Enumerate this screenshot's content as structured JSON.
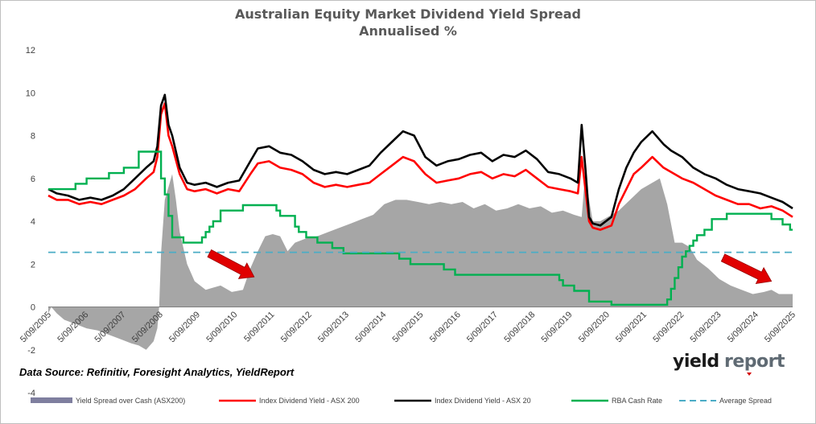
{
  "chart_data": {
    "type": "line",
    "title": "Australian Equity Market Dividend Yield Spread",
    "subtitle": "Annualised %",
    "source_note": "Data Source: Refinitiv, Foresight Analytics, YieldReport",
    "logo": {
      "part1": "yield",
      "part2": "report"
    },
    "ylim": [
      -4,
      12
    ],
    "yticks": [
      -4,
      -2,
      0,
      2,
      4,
      6,
      8,
      10,
      12
    ],
    "xlim": [
      2005.67,
      2025.67
    ],
    "xtick_labels": [
      "5/09/2005",
      "5/09/2006",
      "5/09/2007",
      "5/09/2008",
      "5/09/2009",
      "5/09/2010",
      "5/09/2011",
      "5/09/2012",
      "5/09/2013",
      "5/09/2014",
      "5/09/2015",
      "5/09/2016",
      "5/09/2017",
      "5/09/2018",
      "5/09/2019",
      "5/09/2020",
      "5/09/2021",
      "5/09/2022",
      "5/09/2023",
      "5/09/2024",
      "5/09/2025"
    ],
    "xtick_values": [
      2005.67,
      2006.67,
      2007.67,
      2008.67,
      2009.67,
      2010.67,
      2011.67,
      2012.67,
      2013.67,
      2014.67,
      2015.67,
      2016.67,
      2017.67,
      2018.67,
      2019.67,
      2020.67,
      2021.67,
      2022.67,
      2023.67,
      2024.67,
      2025.67
    ],
    "grid": false,
    "legend_position": "bottom",
    "average_spread": 2.55,
    "series": [
      {
        "name": "Yield Spread over Cash (ASX200)",
        "style": "area",
        "color": "#a6a6a6",
        "x": [
          2005.67,
          2005.75,
          2005.9,
          2006.1,
          2006.4,
          2006.7,
          2007.0,
          2007.3,
          2007.6,
          2007.9,
          2008.1,
          2008.3,
          2008.5,
          2008.6,
          2008.65,
          2008.7,
          2008.8,
          2009.0,
          2009.1,
          2009.2,
          2009.4,
          2009.6,
          2009.9,
          2010.1,
          2010.3,
          2010.6,
          2010.9,
          2011.1,
          2011.3,
          2011.5,
          2011.7,
          2011.9,
          2012.1,
          2012.3,
          2012.6,
          2012.9,
          2013.2,
          2013.5,
          2013.8,
          2014.1,
          2014.4,
          2014.7,
          2015.0,
          2015.3,
          2015.6,
          2015.9,
          2016.2,
          2016.5,
          2016.8,
          2017.1,
          2017.4,
          2017.7,
          2018.0,
          2018.3,
          2018.6,
          2018.9,
          2019.2,
          2019.5,
          2019.8,
          2020.0,
          2020.1,
          2020.2,
          2020.3,
          2020.5,
          2020.7,
          2021.0,
          2021.3,
          2021.6,
          2021.9,
          2022.1,
          2022.3,
          2022.5,
          2022.7,
          2022.9,
          2023.1,
          2023.4,
          2023.7,
          2024.0,
          2024.3,
          2024.6,
          2024.9,
          2025.1,
          2025.3,
          2025.5,
          2025.67
        ],
        "y": [
          -0.3,
          0.0,
          -0.3,
          -0.6,
          -0.8,
          -1.0,
          -1.1,
          -1.3,
          -1.5,
          -1.7,
          -1.8,
          -2.0,
          -1.6,
          -1.0,
          0.0,
          2.5,
          5.0,
          6.2,
          5.0,
          3.5,
          2.0,
          1.2,
          0.8,
          0.9,
          1.0,
          0.7,
          0.8,
          1.8,
          2.6,
          3.3,
          3.4,
          3.3,
          2.6,
          3.0,
          3.2,
          3.3,
          3.5,
          3.7,
          3.9,
          4.1,
          4.3,
          4.8,
          5.0,
          5.0,
          4.9,
          4.8,
          4.9,
          4.8,
          4.9,
          4.6,
          4.8,
          4.5,
          4.6,
          4.8,
          4.6,
          4.7,
          4.4,
          4.5,
          4.3,
          4.2,
          6.3,
          5.0,
          4.0,
          4.0,
          4.2,
          4.5,
          5.0,
          5.5,
          5.8,
          6.0,
          4.8,
          3.0,
          3.0,
          2.8,
          2.2,
          1.8,
          1.3,
          1.0,
          0.8,
          0.6,
          0.7,
          0.8,
          0.6,
          0.6,
          0.6
        ]
      },
      {
        "name": "Index Dividend Yield - ASX 200",
        "style": "line",
        "color": "#ff0000",
        "x": [
          2005.67,
          2005.9,
          2006.2,
          2006.5,
          2006.8,
          2007.1,
          2007.4,
          2007.7,
          2008.0,
          2008.3,
          2008.5,
          2008.6,
          2008.7,
          2008.8,
          2008.9,
          2009.0,
          2009.2,
          2009.4,
          2009.6,
          2009.9,
          2010.2,
          2010.5,
          2010.8,
          2011.1,
          2011.3,
          2011.6,
          2011.9,
          2012.2,
          2012.5,
          2012.8,
          2013.1,
          2013.4,
          2013.7,
          2014.0,
          2014.3,
          2014.6,
          2014.9,
          2015.2,
          2015.5,
          2015.8,
          2016.1,
          2016.4,
          2016.7,
          2017.0,
          2017.3,
          2017.6,
          2017.9,
          2018.2,
          2018.5,
          2018.8,
          2019.1,
          2019.4,
          2019.7,
          2019.9,
          2020.0,
          2020.1,
          2020.2,
          2020.3,
          2020.5,
          2020.8,
          2021.0,
          2021.2,
          2021.4,
          2021.6,
          2021.9,
          2022.2,
          2022.4,
          2022.7,
          2023.0,
          2023.3,
          2023.6,
          2023.9,
          2024.2,
          2024.5,
          2024.8,
          2025.1,
          2025.4,
          2025.67
        ],
        "y": [
          5.2,
          5.0,
          5.0,
          4.8,
          4.9,
          4.8,
          5.0,
          5.2,
          5.5,
          6.0,
          6.3,
          7.0,
          9.0,
          9.5,
          8.0,
          7.5,
          6.2,
          5.5,
          5.4,
          5.5,
          5.3,
          5.5,
          5.4,
          6.2,
          6.7,
          6.8,
          6.5,
          6.4,
          6.2,
          5.8,
          5.6,
          5.7,
          5.6,
          5.7,
          5.8,
          6.2,
          6.6,
          7.0,
          6.8,
          6.2,
          5.8,
          5.9,
          6.0,
          6.2,
          6.3,
          6.0,
          6.2,
          6.1,
          6.4,
          6.0,
          5.6,
          5.5,
          5.4,
          5.3,
          7.0,
          5.5,
          4.0,
          3.7,
          3.6,
          3.8,
          4.8,
          5.5,
          6.2,
          6.5,
          7.0,
          6.5,
          6.3,
          6.0,
          5.8,
          5.5,
          5.2,
          5.0,
          4.8,
          4.8,
          4.6,
          4.7,
          4.5,
          4.2
        ]
      },
      {
        "name": "Index Dividend Yield - ASX 20",
        "style": "line",
        "color": "#000000",
        "x": [
          2005.67,
          2005.9,
          2006.2,
          2006.5,
          2006.8,
          2007.1,
          2007.4,
          2007.7,
          2008.0,
          2008.3,
          2008.5,
          2008.6,
          2008.7,
          2008.8,
          2008.9,
          2009.0,
          2009.2,
          2009.4,
          2009.6,
          2009.9,
          2010.2,
          2010.5,
          2010.8,
          2011.1,
          2011.3,
          2011.6,
          2011.9,
          2012.2,
          2012.5,
          2012.8,
          2013.1,
          2013.4,
          2013.7,
          2014.0,
          2014.3,
          2014.6,
          2014.9,
          2015.2,
          2015.5,
          2015.8,
          2016.1,
          2016.4,
          2016.7,
          2017.0,
          2017.3,
          2017.6,
          2017.9,
          2018.2,
          2018.5,
          2018.8,
          2019.1,
          2019.4,
          2019.7,
          2019.9,
          2020.0,
          2020.1,
          2020.2,
          2020.3,
          2020.5,
          2020.8,
          2021.0,
          2021.2,
          2021.4,
          2021.6,
          2021.9,
          2022.2,
          2022.4,
          2022.7,
          2023.0,
          2023.3,
          2023.6,
          2023.9,
          2024.2,
          2024.5,
          2024.8,
          2025.1,
          2025.4,
          2025.67
        ],
        "y": [
          5.5,
          5.3,
          5.2,
          5.0,
          5.1,
          5.0,
          5.2,
          5.5,
          6.0,
          6.5,
          6.8,
          7.5,
          9.4,
          9.9,
          8.5,
          8.0,
          6.5,
          5.8,
          5.7,
          5.8,
          5.6,
          5.8,
          5.9,
          6.8,
          7.4,
          7.5,
          7.2,
          7.1,
          6.8,
          6.4,
          6.2,
          6.3,
          6.2,
          6.4,
          6.6,
          7.2,
          7.7,
          8.2,
          8.0,
          7.0,
          6.6,
          6.8,
          6.9,
          7.1,
          7.2,
          6.8,
          7.1,
          7.0,
          7.3,
          6.9,
          6.3,
          6.2,
          6.0,
          5.8,
          8.5,
          6.5,
          4.2,
          3.9,
          3.8,
          4.2,
          5.5,
          6.5,
          7.2,
          7.7,
          8.2,
          7.6,
          7.3,
          7.0,
          6.5,
          6.2,
          6.0,
          5.7,
          5.5,
          5.4,
          5.3,
          5.1,
          4.9,
          4.6
        ]
      },
      {
        "name": "RBA Cash Rate",
        "style": "step",
        "color": "#00b050",
        "x": [
          2005.67,
          2006.4,
          2006.7,
          2007.3,
          2007.7,
          2008.1,
          2008.7,
          2008.8,
          2008.9,
          2009.0,
          2009.3,
          2009.8,
          2009.9,
          2010.0,
          2010.1,
          2010.3,
          2010.9,
          2011.8,
          2011.9,
          2012.3,
          2012.4,
          2012.6,
          2012.9,
          2013.3,
          2013.6,
          2015.1,
          2015.4,
          2016.3,
          2016.6,
          2019.4,
          2019.5,
          2019.8,
          2020.2,
          2020.8,
          2022.3,
          2022.4,
          2022.5,
          2022.6,
          2022.7,
          2022.8,
          2022.9,
          2023.0,
          2023.1,
          2023.3,
          2023.5,
          2023.9,
          2025.1,
          2025.4,
          2025.6,
          2025.67
        ],
        "y": [
          5.5,
          5.75,
          6.0,
          6.25,
          6.5,
          7.25,
          6.0,
          5.25,
          4.25,
          3.25,
          3.0,
          3.25,
          3.5,
          3.75,
          4.0,
          4.5,
          4.75,
          4.5,
          4.25,
          3.75,
          3.5,
          3.25,
          3.0,
          2.75,
          2.5,
          2.25,
          2.0,
          1.75,
          1.5,
          1.25,
          1.0,
          0.75,
          0.25,
          0.1,
          0.35,
          0.85,
          1.35,
          1.85,
          2.35,
          2.6,
          2.85,
          3.1,
          3.35,
          3.6,
          4.1,
          4.35,
          4.1,
          3.85,
          3.6,
          3.6
        ]
      },
      {
        "name": "Average Spread",
        "style": "dashed",
        "color": "#4bacc6",
        "x": [
          2005.67,
          2025.67
        ],
        "y": [
          2.55,
          2.55
        ]
      }
    ],
    "annotations": [
      {
        "type": "arrow",
        "color": "#e00000",
        "from": [
          2010.0,
          2.5
        ],
        "to": [
          2011.2,
          1.4
        ]
      },
      {
        "type": "arrow",
        "color": "#e00000",
        "from": [
          2023.8,
          2.3
        ],
        "to": [
          2025.1,
          1.2
        ]
      }
    ]
  }
}
